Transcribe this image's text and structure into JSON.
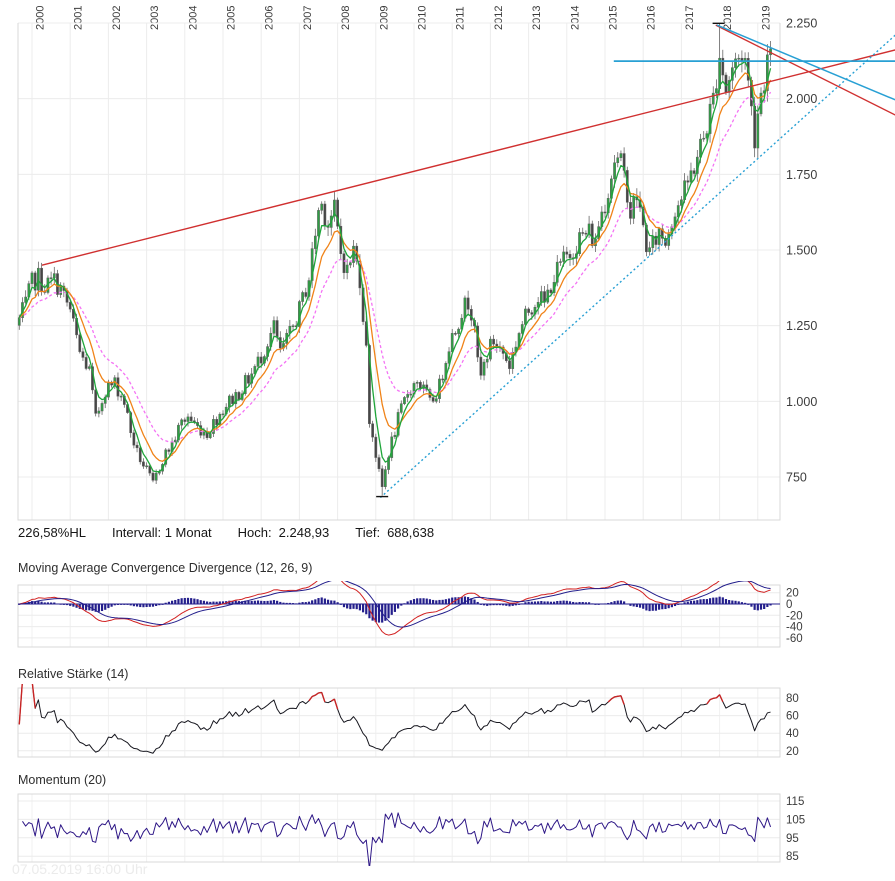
{
  "chart_data": {
    "type": "candlestick+indicators",
    "interval": "1 Monat",
    "x_years": [
      "2000",
      "2001",
      "2002",
      "2003",
      "2004",
      "2005",
      "2006",
      "2007",
      "2008",
      "2009",
      "2010",
      "2011",
      "2012",
      "2013",
      "2014",
      "2015",
      "2016",
      "2017",
      "2018",
      "2019"
    ],
    "price_axis": {
      "ticks": [
        2250,
        2000,
        1750,
        1500,
        1250,
        1000,
        750
      ],
      "labels": [
        "2.250",
        "2.000",
        "1.750",
        "1.500",
        "1.250",
        "1.000",
        "750"
      ]
    },
    "price_anchors": [
      [
        1999.667,
        1270
      ],
      [
        1999.833,
        1320
      ],
      [
        2000.0,
        1390
      ],
      [
        2000.167,
        1410
      ],
      [
        2000.333,
        1380
      ],
      [
        2000.583,
        1400
      ],
      [
        2000.75,
        1370
      ],
      [
        2001.0,
        1300
      ],
      [
        2001.25,
        1160
      ],
      [
        2001.5,
        1100
      ],
      [
        2001.667,
        940
      ],
      [
        2001.917,
        1040
      ],
      [
        2002.167,
        1060
      ],
      [
        2002.417,
        1000
      ],
      [
        2002.583,
        900
      ],
      [
        2002.75,
        830
      ],
      [
        2003.0,
        770
      ],
      [
        2003.167,
        725
      ],
      [
        2003.417,
        810
      ],
      [
        2003.667,
        860
      ],
      [
        2003.917,
        930
      ],
      [
        2004.083,
        950
      ],
      [
        2004.333,
        915
      ],
      [
        2004.583,
        895
      ],
      [
        2004.833,
        945
      ],
      [
        2005.083,
        990
      ],
      [
        2005.417,
        1030
      ],
      [
        2005.75,
        1090
      ],
      [
        2006.0,
        1150
      ],
      [
        2006.333,
        1245
      ],
      [
        2006.5,
        1160
      ],
      [
        2006.75,
        1220
      ],
      [
        2007.0,
        1300
      ],
      [
        2007.25,
        1410
      ],
      [
        2007.5,
        1630
      ],
      [
        2007.583,
        1650
      ],
      [
        2007.75,
        1590
      ],
      [
        2007.917,
        1630
      ],
      [
        2008.083,
        1490
      ],
      [
        2008.25,
        1430
      ],
      [
        2008.417,
        1500
      ],
      [
        2008.583,
        1410
      ],
      [
        2008.75,
        1170
      ],
      [
        2008.833,
        940
      ],
      [
        2008.917,
        890
      ],
      [
        2009.083,
        760
      ],
      [
        2009.167,
        715
      ],
      [
        2009.333,
        830
      ],
      [
        2009.583,
        940
      ],
      [
        2009.833,
        1030
      ],
      [
        2010.083,
        1070
      ],
      [
        2010.333,
        1020
      ],
      [
        2010.417,
        990
      ],
      [
        2010.667,
        1050
      ],
      [
        2010.917,
        1190
      ],
      [
        2011.083,
        1240
      ],
      [
        2011.25,
        1300
      ],
      [
        2011.417,
        1330
      ],
      [
        2011.583,
        1270
      ],
      [
        2011.667,
        1120
      ],
      [
        2011.75,
        1080
      ],
      [
        2011.917,
        1160
      ],
      [
        2012.083,
        1200
      ],
      [
        2012.333,
        1160
      ],
      [
        2012.5,
        1120
      ],
      [
        2012.75,
        1230
      ],
      [
        2013.0,
        1300
      ],
      [
        2013.25,
        1350
      ],
      [
        2013.417,
        1320
      ],
      [
        2013.583,
        1390
      ],
      [
        2013.833,
        1450
      ],
      [
        2014.083,
        1490
      ],
      [
        2014.333,
        1540
      ],
      [
        2014.583,
        1560
      ],
      [
        2014.75,
        1520
      ],
      [
        2014.833,
        1590
      ],
      [
        2015.083,
        1700
      ],
      [
        2015.25,
        1800
      ],
      [
        2015.417,
        1780
      ],
      [
        2015.583,
        1700
      ],
      [
        2015.667,
        1620
      ],
      [
        2015.833,
        1680
      ],
      [
        2016.083,
        1520
      ],
      [
        2016.167,
        1490
      ],
      [
        2016.417,
        1560
      ],
      [
        2016.583,
        1530
      ],
      [
        2016.833,
        1640
      ],
      [
        2017.083,
        1690
      ],
      [
        2017.333,
        1780
      ],
      [
        2017.583,
        1870
      ],
      [
        2017.833,
        2000
      ],
      [
        2017.917,
        2080
      ],
      [
        2018.0,
        2150
      ],
      [
        2018.167,
        2030
      ],
      [
        2018.333,
        2100
      ],
      [
        2018.583,
        2150
      ],
      [
        2018.667,
        2130
      ],
      [
        2018.75,
        2050
      ],
      [
        2018.917,
        1880
      ],
      [
        2019.0,
        1960
      ],
      [
        2019.083,
        2020
      ],
      [
        2019.167,
        2070
      ],
      [
        2019.25,
        2130
      ],
      [
        2019.333,
        2120
      ]
    ],
    "extremes": {
      "high": {
        "t": 2018.0,
        "value": 2248.93
      },
      "low": {
        "t": 2009.167,
        "value": 688.64
      }
    },
    "moving_averages": [
      {
        "name": "ma-fast",
        "span": 4,
        "color": "#1fa53a",
        "dash": null
      },
      {
        "name": "ma-mid",
        "span": 9,
        "color": "#f08318",
        "dash": null
      },
      {
        "name": "ma-slow",
        "span": 18,
        "color": "#f473f4",
        "dash": "3,2.4"
      }
    ],
    "trendlines": [
      {
        "name": "resistance-2000-2007",
        "color": "#d03030",
        "width": 1.4,
        "dash": null,
        "points": [
          [
            2000.26,
            1450
          ],
          [
            2022.6,
            2161
          ]
        ]
      },
      {
        "name": "downtrend-2018-red",
        "color": "#d03030",
        "width": 1.4,
        "dash": null,
        "points": [
          [
            2017.9,
            2243
          ],
          [
            2022.6,
            1946
          ]
        ]
      },
      {
        "name": "horizontal-resistance",
        "color": "#28a0d4",
        "width": 1.8,
        "dash": null,
        "points": [
          [
            2015.23,
            2124
          ],
          [
            2022.6,
            2124
          ]
        ]
      },
      {
        "name": "downtrend-2018-blue",
        "color": "#28a0d4",
        "width": 1.5,
        "dash": null,
        "points": [
          [
            2017.93,
            2243
          ],
          [
            2022.6,
            1996
          ]
        ]
      },
      {
        "name": "uptrend-2009",
        "color": "#28a0d4",
        "width": 1.4,
        "dash": "2,2.6",
        "points": [
          [
            2009.12,
            682
          ],
          [
            2022.6,
            2210
          ]
        ]
      }
    ],
    "indicators": [
      {
        "key": "macd",
        "title": "Moving Average Convergence Divergence (12, 26, 9)",
        "params": [
          12,
          26,
          9
        ],
        "axis_ticks": [
          20,
          0,
          -20,
          -40,
          -60
        ]
      },
      {
        "key": "rsi",
        "title": "Relative Stärke (14)",
        "period": 14,
        "axis_ticks": [
          80,
          60,
          40,
          20
        ],
        "overbought_level": 80
      },
      {
        "key": "momentum",
        "title": "Momentum (20)",
        "period": 20,
        "axis_ticks": [
          115,
          105,
          95,
          85
        ]
      }
    ],
    "footer": {
      "change": "226,58%HL",
      "interval": "Intervall: 1 Monat",
      "high_label": "Hoch:",
      "high_value": "2.248,93",
      "low_label": "Tief:",
      "low_value": "688,638"
    },
    "timestamp": "07.05.2019 16:00 Uhr",
    "colors": {
      "candle_up": "#2f9e44",
      "candle_down": "#464646",
      "candle_stroke": "#5f5f5f",
      "ma_fast": "#1fa53a",
      "ma_mid": "#f08318",
      "ma_slow": "#f473f4",
      "trend_red": "#d03030",
      "trend_blue": "#28a0d4",
      "macd_line": "#d22222",
      "macd_signal": "#241f8c",
      "macd_hist": "#241f8c",
      "rsi_line": "#17171f",
      "rsi_hot": "#c92525",
      "momentum_line": "#2d1686",
      "grid": "#ececec",
      "border": "#d9d9d9",
      "tick_text": "#3c3c3c"
    }
  }
}
